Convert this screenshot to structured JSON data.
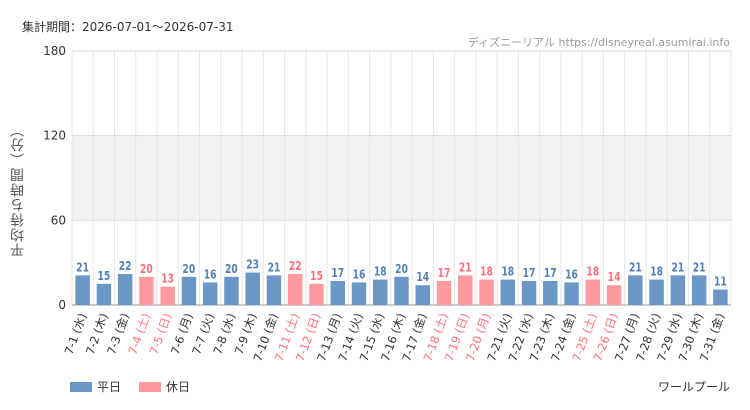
{
  "header": {
    "period": "集計期間：2026-07-01〜2026-07-31",
    "credit": "ディズニーリアル https://disneyreal.asumirai.info"
  },
  "attraction": "ワールプール",
  "colors": {
    "weekday": "#6a97c5",
    "holiday": "#ff9a9f",
    "holiday_text": "#ff6f7a",
    "weekday_text": "#4f80b6",
    "band": "#f2f2f2"
  },
  "chart_data": {
    "type": "bar",
    "ylabel": "平均待ち時間（分）",
    "ylim": [
      0,
      180
    ],
    "yticks": [
      0,
      60,
      120,
      180
    ],
    "band": [
      60,
      120
    ],
    "categories": [
      "7-1 (水)",
      "7-2 (木)",
      "7-3 (金)",
      "7-4 (土)",
      "7-5 (日)",
      "7-6 (月)",
      "7-7 (火)",
      "7-8 (水)",
      "7-9 (木)",
      "7-10 (金)",
      "7-11 (土)",
      "7-12 (日)",
      "7-13 (月)",
      "7-14 (火)",
      "7-15 (水)",
      "7-16 (木)",
      "7-17 (金)",
      "7-18 (土)",
      "7-19 (日)",
      "7-20 (月)",
      "7-21 (火)",
      "7-22 (水)",
      "7-23 (木)",
      "7-24 (金)",
      "7-25 (土)",
      "7-26 (日)",
      "7-27 (月)",
      "7-28 (火)",
      "7-29 (水)",
      "7-30 (木)",
      "7-31 (金)"
    ],
    "values": [
      21,
      15,
      22,
      20,
      13,
      20,
      16,
      20,
      23,
      21,
      22,
      15,
      17,
      16,
      18,
      20,
      14,
      17,
      21,
      18,
      18,
      17,
      17,
      16,
      18,
      14,
      21,
      18,
      21,
      21,
      11
    ],
    "holiday": [
      false,
      false,
      false,
      true,
      true,
      false,
      false,
      false,
      false,
      false,
      true,
      true,
      false,
      false,
      false,
      false,
      false,
      true,
      true,
      true,
      false,
      false,
      false,
      false,
      true,
      true,
      false,
      false,
      false,
      false,
      false
    ],
    "legend": [
      {
        "label": "平日",
        "key": "weekday"
      },
      {
        "label": "休日",
        "key": "holiday"
      }
    ]
  }
}
